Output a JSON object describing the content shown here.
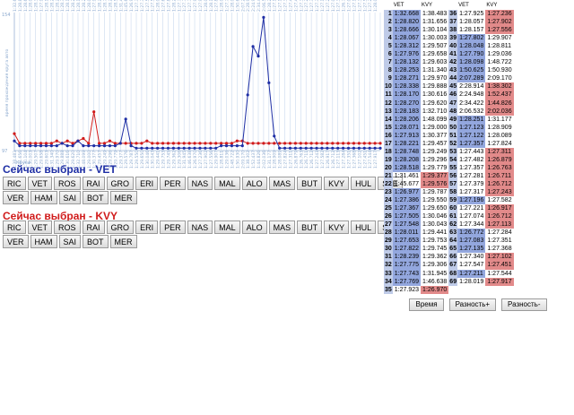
{
  "chart": {
    "ylabel": "время прохождения круга авто",
    "xlabel": "Круги",
    "y_top": "154",
    "y_bottom": "97",
    "blue": "#1f2fa5",
    "red": "#d01b1b",
    "grid_color": "#c9d8ee"
  },
  "chart_data": {
    "type": "line",
    "x": [
      1,
      2,
      3,
      4,
      5,
      6,
      7,
      8,
      9,
      10,
      11,
      12,
      13,
      14,
      15,
      16,
      17,
      18,
      19,
      20,
      21,
      22,
      23,
      24,
      25,
      26,
      27,
      28,
      29,
      30,
      31,
      32,
      33,
      34,
      35,
      36,
      37,
      38,
      39,
      40,
      41,
      42,
      43,
      44,
      45,
      46,
      47,
      48,
      49,
      50,
      51,
      52,
      53,
      54,
      55,
      56,
      57,
      58,
      59,
      60,
      61,
      62,
      63,
      64,
      65,
      66,
      67,
      68,
      69,
      70
    ],
    "series": [
      {
        "name": "VET",
        "values": [
          101,
          99,
          99,
          99,
          99,
          99,
          99,
          99,
          99,
          100,
          99,
          99,
          101,
          99,
          99,
          99,
          99,
          99,
          99,
          99,
          100,
          110,
          99,
          98,
          98,
          98,
          98,
          98,
          98,
          98,
          98,
          98,
          98,
          98,
          98,
          98,
          98,
          98,
          98,
          99,
          99,
          99,
          99,
          99,
          120,
          140,
          136,
          152,
          125,
          103,
          98,
          98,
          98,
          98,
          98,
          98,
          98,
          98,
          98,
          98,
          98,
          98,
          98,
          98,
          98,
          98,
          98,
          98,
          98,
          98
        ]
      },
      {
        "name": "KVY",
        "values": [
          104,
          100,
          100,
          100,
          100,
          100,
          100,
          100,
          101,
          100,
          101,
          100,
          101,
          102,
          100,
          113,
          100,
          100,
          101,
          100,
          100,
          100,
          100,
          100,
          100,
          101,
          100,
          100,
          100,
          100,
          100,
          100,
          100,
          100,
          100,
          100,
          100,
          100,
          100,
          100,
          100,
          100,
          101,
          101,
          100,
          100,
          100,
          100,
          100,
          100,
          100,
          100,
          100,
          100,
          100,
          100,
          100,
          100,
          100,
          100,
          100,
          100,
          100,
          100,
          100,
          100,
          100,
          100,
          100,
          100
        ]
      }
    ]
  },
  "selected_vet": "Сейчас выбран - VET",
  "selected_kvy": "Сейчас выбран - KVY",
  "buttons_row1": [
    "RIC",
    "VET",
    "ROS",
    "RAI",
    "GRO",
    "ERI",
    "PER",
    "NAS",
    "MAL",
    "ALO",
    "MAS",
    "BUT",
    "KVY",
    "HUL",
    "STE"
  ],
  "buttons_row2": [
    "VER",
    "HAM",
    "SAI",
    "BOT",
    "MER"
  ],
  "table": {
    "headers": [
      "VET",
      "KVY",
      "VET",
      "KVY"
    ],
    "rows": [
      [
        "1",
        "1:32.668",
        "1:38.483",
        "36",
        "1:27.925",
        "1:27.236"
      ],
      [
        "2",
        "1:28.820",
        "1:31.656",
        "37",
        "1:28.057",
        "1:27.902"
      ],
      [
        "3",
        "1:28.666",
        "1:30.104",
        "38",
        "1:28.157",
        "1:27.556"
      ],
      [
        "4",
        "1:28.067",
        "1:30.003",
        "39",
        "1:27.802",
        "1:29.907"
      ],
      [
        "5",
        "1:28.312",
        "1:29.507",
        "40",
        "1:28.048",
        "1:28.811"
      ],
      [
        "6",
        "1:27.976",
        "1:29.658",
        "41",
        "1:27.790",
        "1:29.036"
      ],
      [
        "7",
        "1:28.132",
        "1:29.603",
        "42",
        "1:28.098",
        "1:48.722"
      ],
      [
        "8",
        "1:28.253",
        "1:31.340",
        "43",
        "1:50.625",
        "1:50.930"
      ],
      [
        "9",
        "1:28.271",
        "1:29.970",
        "44",
        "2:07.289",
        "2:09.170"
      ],
      [
        "10",
        "1:28.338",
        "1:29.888",
        "45",
        "2:28.914",
        "1:38.302"
      ],
      [
        "11",
        "1:28.170",
        "1:30.616",
        "46",
        "2:24.948",
        "1:52.437"
      ],
      [
        "12",
        "1:28.270",
        "1:29.620",
        "47",
        "2:34.422",
        "1:44.826"
      ],
      [
        "13",
        "1:28.183",
        "1:32.710",
        "48",
        "2:06.532",
        "2:02.036"
      ],
      [
        "14",
        "1:28.206",
        "1:48.099",
        "49",
        "1:28.251",
        "1:31.177"
      ],
      [
        "15",
        "1:28.071",
        "1:29.000",
        "50",
        "1:27.123",
        "1:28.909"
      ],
      [
        "16",
        "1:27.913",
        "1:30.377",
        "51",
        "1:27.122",
        "1:28.089"
      ],
      [
        "17",
        "1:28.221",
        "1:29.457",
        "52",
        "1:27.357",
        "1:27.824"
      ],
      [
        "18",
        "1:28.748",
        "1:29.249",
        "53",
        "1:27.443",
        "1:27.311"
      ],
      [
        "19",
        "1:28.208",
        "1:29.296",
        "54",
        "1:27.482",
        "1:26.879"
      ],
      [
        "20",
        "1:28.518",
        "1:29.779",
        "55",
        "1:27.357",
        "1:26.763"
      ],
      [
        "21",
        "1:31.461",
        "1:29.377",
        "56",
        "1:27.281",
        "1:26.711"
      ],
      [
        "22",
        "1:45.677",
        "1:29.576",
        "57",
        "1:27.379",
        "1:26.712"
      ],
      [
        "23",
        "1:26.977",
        "1:29.787",
        "58",
        "1:27.317",
        "1:27.243"
      ],
      [
        "24",
        "1:27.386",
        "1:29.550",
        "59",
        "1:27.196",
        "1:27.582"
      ],
      [
        "25",
        "1:27.367",
        "1:29.650",
        "60",
        "1:27.221",
        "1:26.917"
      ],
      [
        "26",
        "1:27.505",
        "1:30.046",
        "61",
        "1:27.074",
        "1:26.712"
      ],
      [
        "27",
        "1:27.548",
        "1:30.043",
        "62",
        "1:27.344",
        "1:27.113"
      ],
      [
        "28",
        "1:28.011",
        "1:29.441",
        "63",
        "1:26.772",
        "1:27.284"
      ],
      [
        "29",
        "1:27.653",
        "1:29.753",
        "64",
        "1:27.083",
        "1:27.351"
      ],
      [
        "30",
        "1:27.822",
        "1:29.745",
        "65",
        "1:27.135",
        "1:27.368"
      ],
      [
        "31",
        "1:28.239",
        "1:29.362",
        "66",
        "1:27.340",
        "1:27.102"
      ],
      [
        "32",
        "1:27.775",
        "1:29.306",
        "67",
        "1:27.547",
        "1:27.451"
      ],
      [
        "33",
        "1:27.743",
        "1:31.945",
        "68",
        "1:27.211",
        "1:27.544"
      ],
      [
        "34",
        "1:27.769",
        "1:46.638",
        "69",
        "1:28.019",
        "1:27.917"
      ],
      [
        "35",
        "1:27.923",
        "1:26.970",
        "",
        "",
        ""
      ]
    ]
  },
  "bottom_buttons": [
    "Время",
    "Разность+",
    "Разность-"
  ]
}
